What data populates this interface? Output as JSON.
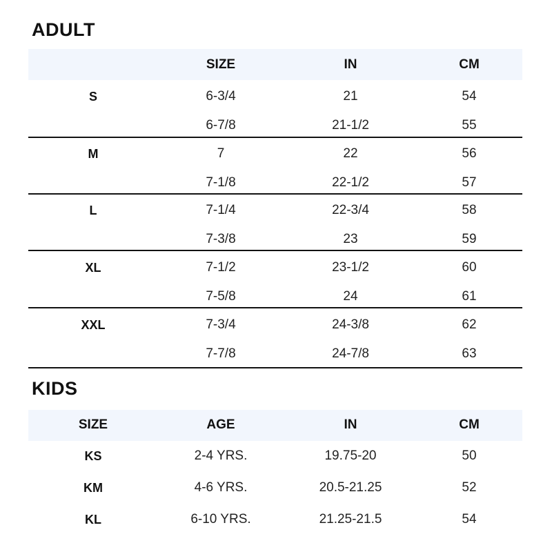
{
  "adult": {
    "title": "ADULT",
    "headers": [
      "",
      "SIZE",
      "IN",
      "CM"
    ],
    "groups": [
      {
        "label": "S",
        "rows": [
          [
            "6-3/4",
            "21",
            "54"
          ],
          [
            "6-7/8",
            "21-1/2",
            "55"
          ]
        ]
      },
      {
        "label": "M",
        "rows": [
          [
            "7",
            "22",
            "56"
          ],
          [
            "7-1/8",
            "22-1/2",
            "57"
          ]
        ]
      },
      {
        "label": "L",
        "rows": [
          [
            "7-1/4",
            "22-3/4",
            "58"
          ],
          [
            "7-3/8",
            "23",
            "59"
          ]
        ]
      },
      {
        "label": "XL",
        "rows": [
          [
            "7-1/2",
            "23-1/2",
            "60"
          ],
          [
            "7-5/8",
            "24",
            "61"
          ]
        ]
      },
      {
        "label": "XXL",
        "rows": [
          [
            "7-3/4",
            "24-3/8",
            "62"
          ],
          [
            "7-7/8",
            "24-7/8",
            "63"
          ]
        ]
      }
    ]
  },
  "kids": {
    "title": "KIDS",
    "headers": [
      "SIZE",
      "AGE",
      "IN",
      "CM"
    ],
    "rows": [
      [
        "KS",
        "2-4 YRS.",
        "19.75-20",
        "50"
      ],
      [
        "KM",
        "4-6 YRS.",
        "20.5-21.25",
        "52"
      ],
      [
        "KL",
        "6-10 YRS.",
        "21.25-21.5",
        "54"
      ]
    ]
  },
  "colors": {
    "header_band": "#f2f6fd",
    "text": "#111111"
  }
}
